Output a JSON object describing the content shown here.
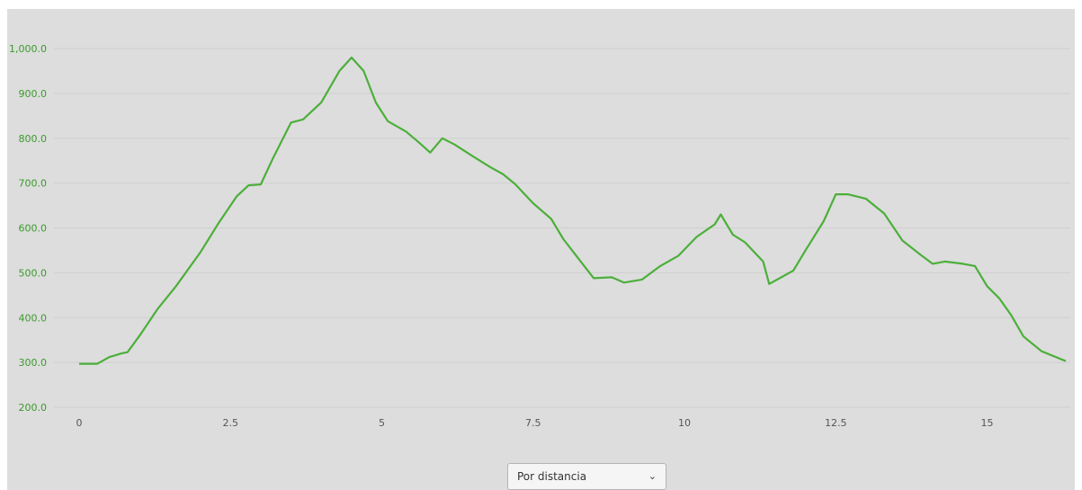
{
  "chart_data": {
    "type": "line",
    "title": "",
    "xlabel": "",
    "ylabel": "",
    "xlim": [
      0,
      16.3
    ],
    "ylim": [
      200,
      1000
    ],
    "x_ticks": [
      {
        "value": 0,
        "label": "0"
      },
      {
        "value": 2.5,
        "label": "2.5"
      },
      {
        "value": 5,
        "label": "5"
      },
      {
        "value": 7.5,
        "label": "7.5"
      },
      {
        "value": 10,
        "label": "10"
      },
      {
        "value": 12.5,
        "label": "12.5"
      },
      {
        "value": 15,
        "label": "15"
      }
    ],
    "y_ticks": [
      {
        "value": 200,
        "label": "200.0"
      },
      {
        "value": 300,
        "label": "300.0"
      },
      {
        "value": 400,
        "label": "400.0"
      },
      {
        "value": 500,
        "label": "500.0"
      },
      {
        "value": 600,
        "label": "600.0"
      },
      {
        "value": 700,
        "label": "700.0"
      },
      {
        "value": 800,
        "label": "800.0"
      },
      {
        "value": 900,
        "label": "900.0"
      },
      {
        "value": 1000,
        "label": "1,000.0"
      }
    ],
    "grid": true,
    "colors": {
      "line": "#4caf3a",
      "axis_labels": "#3a9a2a",
      "background": "#dddddd",
      "grid": "#cfcfcf"
    },
    "series": [
      {
        "x": [
          0,
          0.3,
          0.5,
          0.7,
          0.8,
          1.0,
          1.3,
          1.6,
          2.0,
          2.3,
          2.6,
          2.8,
          3.0,
          3.2,
          3.5,
          3.7,
          4.0,
          4.3,
          4.5,
          4.7,
          4.9,
          5.1,
          5.4,
          5.6,
          5.8,
          6.0,
          6.2,
          6.5,
          6.8,
          7.0,
          7.2,
          7.5,
          7.8,
          8.0,
          8.2,
          8.5,
          8.8,
          9.0,
          9.3,
          9.6,
          9.9,
          10.2,
          10.5,
          10.6,
          10.8,
          11.0,
          11.3,
          11.4,
          11.6,
          11.8,
          12.0,
          12.3,
          12.5,
          12.7,
          13.0,
          13.3,
          13.6,
          13.9,
          14.1,
          14.3,
          14.6,
          14.8,
          15.0,
          15.2,
          15.4,
          15.6,
          15.9,
          16.3
        ],
        "y": [
          297,
          297,
          312,
          320,
          323,
          360,
          420,
          470,
          545,
          610,
          670,
          695,
          697,
          755,
          835,
          842,
          880,
          950,
          980,
          950,
          880,
          838,
          815,
          792,
          768,
          800,
          786,
          760,
          735,
          720,
          698,
          655,
          620,
          575,
          540,
          488,
          490,
          478,
          485,
          515,
          538,
          580,
          608,
          630,
          585,
          568,
          525,
          475,
          490,
          505,
          550,
          615,
          675,
          675,
          665,
          632,
          572,
          540,
          520,
          525,
          520,
          515,
          470,
          443,
          405,
          358,
          325,
          303
        ]
      }
    ]
  },
  "controls": {
    "mode_select": {
      "value": "Por distancia",
      "icon": "chevron-down-icon"
    }
  }
}
